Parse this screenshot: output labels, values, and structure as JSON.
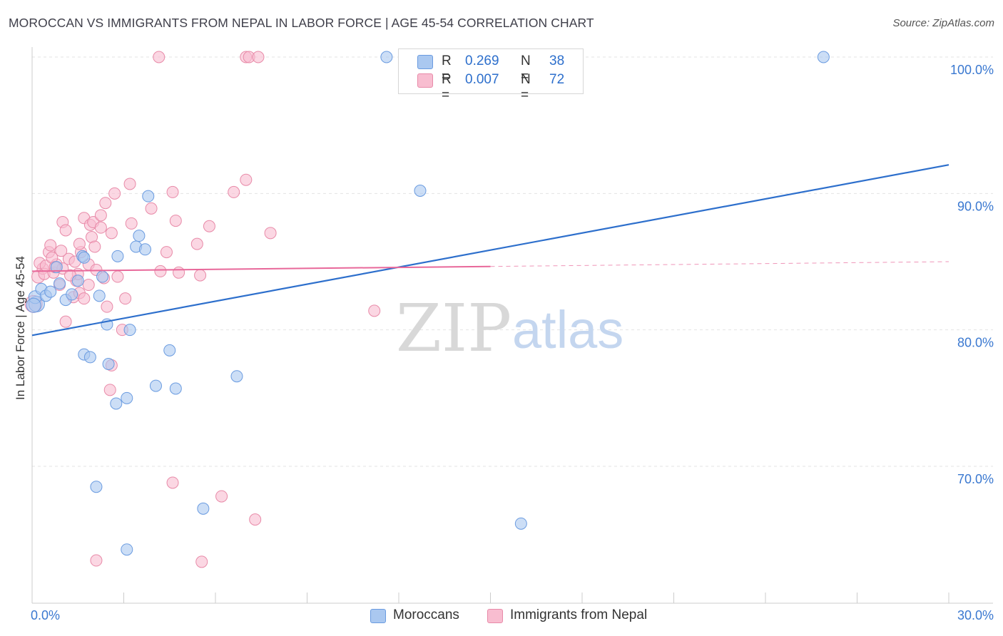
{
  "title": "MOROCCAN VS IMMIGRANTS FROM NEPAL IN LABOR FORCE | AGE 45-54 CORRELATION CHART",
  "source": "Source: ZipAtlas.com",
  "watermark": {
    "zip": "ZIP",
    "atlas": "atlas"
  },
  "legend": {
    "rows": [
      {
        "r_label": "R =",
        "r_value": "0.269",
        "n_label": "N =",
        "n_value": "38",
        "color": "#aac8f0",
        "border": "#6a9be0"
      },
      {
        "r_label": "R =",
        "r_value": "0.007",
        "n_label": "N =",
        "n_value": "72",
        "color": "#f8bdd0",
        "border": "#e88aa8"
      }
    ]
  },
  "bottom_legend": [
    {
      "label": "Moroccans",
      "color": "#aac8f0",
      "border": "#6a9be0"
    },
    {
      "label": "Immigrants from Nepal",
      "color": "#f8bdd0",
      "border": "#e88aa8"
    }
  ],
  "chart_data": {
    "type": "scatter",
    "title": "MOROCCAN VS IMMIGRANTS FROM NEPAL IN LABOR FORCE | AGE 45-54 CORRELATION CHART",
    "xlabel": "",
    "ylabel": "In Labor Force | Age 45-54",
    "xlim": [
      0,
      30
    ],
    "ylim": [
      60.5,
      101.5
    ],
    "x_tick_labels": [
      {
        "value": 0,
        "label": "0.0%"
      },
      {
        "value": 30,
        "label": "30.0%"
      }
    ],
    "y_tick_labels": [
      {
        "value": 70,
        "label": "70.0%"
      },
      {
        "value": 80,
        "label": "80.0%"
      },
      {
        "value": 90,
        "label": "90.0%"
      },
      {
        "value": 100,
        "label": "100.0%"
      }
    ],
    "series": [
      {
        "name": "Moroccans",
        "color": "#6a9be0",
        "fill": "#aac8f0",
        "trend": {
          "x": [
            0,
            30
          ],
          "y": [
            79.6,
            92.1
          ],
          "dashed_from": null,
          "line_color": "#2d6fcc"
        },
        "points": [
          {
            "x": 0.15,
            "y": 81.9,
            "s": 11
          },
          {
            "x": 0.1,
            "y": 82.4,
            "s": 9
          },
          {
            "x": 0.3,
            "y": 83.0,
            "s": 8
          },
          {
            "x": 0.45,
            "y": 82.5,
            "s": 8
          },
          {
            "x": 0.6,
            "y": 82.8,
            "s": 8
          },
          {
            "x": 0.8,
            "y": 84.6,
            "s": 8
          },
          {
            "x": 0.9,
            "y": 83.4,
            "s": 8
          },
          {
            "x": 1.1,
            "y": 82.2,
            "s": 8
          },
          {
            "x": 1.3,
            "y": 82.6,
            "s": 8
          },
          {
            "x": 1.5,
            "y": 83.6,
            "s": 8
          },
          {
            "x": 1.65,
            "y": 85.4,
            "s": 8
          },
          {
            "x": 1.7,
            "y": 85.3,
            "s": 8
          },
          {
            "x": 2.2,
            "y": 82.5,
            "s": 8
          },
          {
            "x": 2.3,
            "y": 83.9,
            "s": 8
          },
          {
            "x": 2.45,
            "y": 80.4,
            "s": 8
          },
          {
            "x": 2.5,
            "y": 77.5,
            "s": 8
          },
          {
            "x": 2.8,
            "y": 85.4,
            "s": 8
          },
          {
            "x": 3.1,
            "y": 75.0,
            "s": 8
          },
          {
            "x": 2.75,
            "y": 74.6,
            "s": 8
          },
          {
            "x": 3.2,
            "y": 80.0,
            "s": 8
          },
          {
            "x": 3.4,
            "y": 86.1,
            "s": 8
          },
          {
            "x": 3.5,
            "y": 86.9,
            "s": 8
          },
          {
            "x": 3.7,
            "y": 85.9,
            "s": 8
          },
          {
            "x": 3.8,
            "y": 89.8,
            "s": 8
          },
          {
            "x": 1.7,
            "y": 78.2,
            "s": 8
          },
          {
            "x": 1.9,
            "y": 78.0,
            "s": 8
          },
          {
            "x": 4.05,
            "y": 75.9,
            "s": 8
          },
          {
            "x": 4.5,
            "y": 78.5,
            "s": 8
          },
          {
            "x": 4.7,
            "y": 75.7,
            "s": 8
          },
          {
            "x": 6.7,
            "y": 76.6,
            "s": 8
          },
          {
            "x": 11.6,
            "y": 100.0,
            "s": 8
          },
          {
            "x": 25.9,
            "y": 100.0,
            "s": 8
          },
          {
            "x": 12.7,
            "y": 90.2,
            "s": 8
          },
          {
            "x": 2.1,
            "y": 68.5,
            "s": 8
          },
          {
            "x": 5.6,
            "y": 66.9,
            "s": 8
          },
          {
            "x": 3.1,
            "y": 63.9,
            "s": 8
          },
          {
            "x": 16.0,
            "y": 65.8,
            "s": 8
          },
          {
            "x": 0.05,
            "y": 81.8,
            "s": 10
          }
        ]
      },
      {
        "name": "Immigrants from Nepal",
        "color": "#e88aa8",
        "fill": "#f8bdd0",
        "trend": {
          "x": [
            0,
            30
          ],
          "y": [
            84.3,
            85.0
          ],
          "dashed_from": 15,
          "line_color": "#e8689a"
        },
        "points": [
          {
            "x": 0.05,
            "y": 81.9,
            "s": 12
          },
          {
            "x": 0.2,
            "y": 83.9,
            "s": 9
          },
          {
            "x": 0.35,
            "y": 84.5,
            "s": 8
          },
          {
            "x": 0.4,
            "y": 84.1,
            "s": 8
          },
          {
            "x": 0.55,
            "y": 85.7,
            "s": 8
          },
          {
            "x": 0.6,
            "y": 86.2,
            "s": 8
          },
          {
            "x": 0.7,
            "y": 84.2,
            "s": 8
          },
          {
            "x": 0.8,
            "y": 84.8,
            "s": 8
          },
          {
            "x": 0.9,
            "y": 83.3,
            "s": 8
          },
          {
            "x": 1.0,
            "y": 84.5,
            "s": 8
          },
          {
            "x": 1.0,
            "y": 87.9,
            "s": 8
          },
          {
            "x": 1.1,
            "y": 87.3,
            "s": 8
          },
          {
            "x": 1.1,
            "y": 80.6,
            "s": 8
          },
          {
            "x": 1.2,
            "y": 85.2,
            "s": 8
          },
          {
            "x": 1.35,
            "y": 82.4,
            "s": 8
          },
          {
            "x": 1.45,
            "y": 83.6,
            "s": 8
          },
          {
            "x": 1.5,
            "y": 84.1,
            "s": 8
          },
          {
            "x": 1.55,
            "y": 82.7,
            "s": 8
          },
          {
            "x": 1.6,
            "y": 85.7,
            "s": 8
          },
          {
            "x": 1.7,
            "y": 82.3,
            "s": 8
          },
          {
            "x": 1.7,
            "y": 88.2,
            "s": 8
          },
          {
            "x": 1.85,
            "y": 84.8,
            "s": 8
          },
          {
            "x": 1.85,
            "y": 83.3,
            "s": 8
          },
          {
            "x": 1.9,
            "y": 87.7,
            "s": 8
          },
          {
            "x": 1.95,
            "y": 86.8,
            "s": 8
          },
          {
            "x": 2.0,
            "y": 87.9,
            "s": 8
          },
          {
            "x": 2.05,
            "y": 86.1,
            "s": 8
          },
          {
            "x": 2.1,
            "y": 84.4,
            "s": 8
          },
          {
            "x": 2.25,
            "y": 87.5,
            "s": 8
          },
          {
            "x": 2.25,
            "y": 88.4,
            "s": 8
          },
          {
            "x": 2.35,
            "y": 83.8,
            "s": 8
          },
          {
            "x": 2.4,
            "y": 89.3,
            "s": 8
          },
          {
            "x": 2.45,
            "y": 81.7,
            "s": 8
          },
          {
            "x": 2.6,
            "y": 87.1,
            "s": 8
          },
          {
            "x": 2.55,
            "y": 75.6,
            "s": 8
          },
          {
            "x": 2.6,
            "y": 77.4,
            "s": 8
          },
          {
            "x": 2.7,
            "y": 90.0,
            "s": 8
          },
          {
            "x": 2.8,
            "y": 83.9,
            "s": 8
          },
          {
            "x": 2.95,
            "y": 80.0,
            "s": 8
          },
          {
            "x": 3.05,
            "y": 82.3,
            "s": 8
          },
          {
            "x": 3.2,
            "y": 90.7,
            "s": 8
          },
          {
            "x": 3.25,
            "y": 87.8,
            "s": 8
          },
          {
            "x": 3.9,
            "y": 88.9,
            "s": 8
          },
          {
            "x": 4.15,
            "y": 100.0,
            "s": 8
          },
          {
            "x": 4.2,
            "y": 84.3,
            "s": 8
          },
          {
            "x": 4.4,
            "y": 85.7,
            "s": 8
          },
          {
            "x": 4.6,
            "y": 90.1,
            "s": 8
          },
          {
            "x": 4.7,
            "y": 88.0,
            "s": 8
          },
          {
            "x": 4.8,
            "y": 84.2,
            "s": 8
          },
          {
            "x": 5.4,
            "y": 86.3,
            "s": 8
          },
          {
            "x": 5.5,
            "y": 84.0,
            "s": 8
          },
          {
            "x": 5.8,
            "y": 87.6,
            "s": 8
          },
          {
            "x": 6.6,
            "y": 90.1,
            "s": 8
          },
          {
            "x": 7.0,
            "y": 91.0,
            "s": 8
          },
          {
            "x": 7.0,
            "y": 100.0,
            "s": 8
          },
          {
            "x": 7.1,
            "y": 100.0,
            "s": 8
          },
          {
            "x": 7.4,
            "y": 100.0,
            "s": 8
          },
          {
            "x": 7.8,
            "y": 87.1,
            "s": 8
          },
          {
            "x": 11.2,
            "y": 81.4,
            "s": 8
          },
          {
            "x": 4.6,
            "y": 68.8,
            "s": 8
          },
          {
            "x": 6.2,
            "y": 67.8,
            "s": 8
          },
          {
            "x": 7.3,
            "y": 66.1,
            "s": 8
          },
          {
            "x": 2.1,
            "y": 63.1,
            "s": 8
          },
          {
            "x": 5.55,
            "y": 63.0,
            "s": 8
          },
          {
            "x": 0.25,
            "y": 84.9,
            "s": 8
          },
          {
            "x": 0.45,
            "y": 84.7,
            "s": 8
          },
          {
            "x": 0.65,
            "y": 85.3,
            "s": 8
          },
          {
            "x": 0.75,
            "y": 84.6,
            "s": 8
          },
          {
            "x": 0.95,
            "y": 85.8,
            "s": 8
          },
          {
            "x": 1.25,
            "y": 84.0,
            "s": 8
          },
          {
            "x": 1.4,
            "y": 85.0,
            "s": 8
          },
          {
            "x": 1.55,
            "y": 86.3,
            "s": 8
          }
        ]
      }
    ]
  }
}
